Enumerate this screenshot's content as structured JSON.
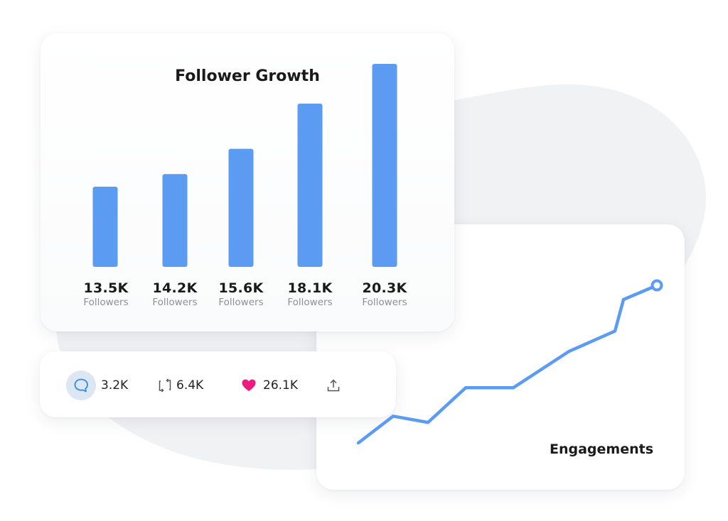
{
  "follower_growth": {
    "title": "Follower Growth",
    "bars": [
      {
        "value_label": "13.5K",
        "sub_label": "Followers"
      },
      {
        "value_label": "14.2K",
        "sub_label": "Followers"
      },
      {
        "value_label": "15.6K",
        "sub_label": "Followers"
      },
      {
        "value_label": "18.1K",
        "sub_label": "Followers"
      },
      {
        "value_label": "20.3K",
        "sub_label": "Followers"
      }
    ]
  },
  "engagements": {
    "title": "Engagements"
  },
  "stats": {
    "comments": "3.2K",
    "retweets": "6.4K",
    "likes": "26.1K"
  },
  "icons": [
    "comment-icon",
    "retweet-icon",
    "heart-icon",
    "share-icon"
  ],
  "colors": {
    "accent_blue": "#5b9cf2",
    "heart_pink": "#f0197d",
    "comment_blue": "#2f8fdc",
    "blob_gray": "#f1f2f4"
  },
  "chart_data": [
    {
      "type": "bar",
      "title": "Follower Growth",
      "categories": [
        "",
        "",
        "",
        "",
        ""
      ],
      "values": [
        13.5,
        14.2,
        15.6,
        18.1,
        20.3
      ],
      "data_labels": [
        "13.5K",
        "14.2K",
        "15.6K",
        "18.1K",
        "20.3K"
      ],
      "xlabel": "",
      "ylabel": "",
      "grid": false
    },
    {
      "type": "line",
      "title": "Engagements",
      "x": [
        0,
        1,
        2,
        3,
        4,
        5,
        6,
        7,
        8,
        9
      ],
      "values": [
        0,
        0.17,
        0.13,
        0.35,
        0.35,
        0.52,
        0.6,
        0.72,
        0.76,
        0.91
      ],
      "xlabel": "",
      "ylabel": "",
      "grid": false,
      "end_marker": true
    }
  ]
}
